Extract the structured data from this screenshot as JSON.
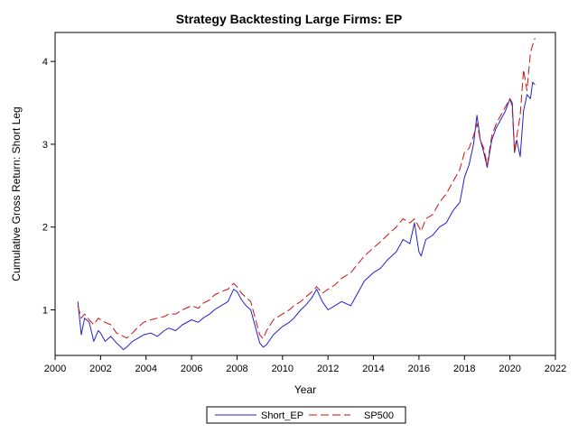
{
  "chart_data": {
    "type": "line",
    "title": "Strategy Backtesting Large Firms: EP",
    "xlabel": "Year",
    "ylabel": "Cumulative Gross Return: Short Leg",
    "xlim": [
      2000,
      2022
    ],
    "ylim": [
      0.45,
      4.35
    ],
    "xticks": [
      2000,
      2002,
      2004,
      2006,
      2008,
      2010,
      2012,
      2014,
      2016,
      2018,
      2020,
      2022
    ],
    "yticks": [
      1,
      2,
      3,
      4
    ],
    "grid": false,
    "legend": "bottom-center",
    "series": [
      {
        "name": "Short_EP",
        "color": "#2222cc",
        "dash": "solid",
        "x": [
          2001.0,
          2001.15,
          2001.3,
          2001.5,
          2001.7,
          2001.9,
          2002.0,
          2002.2,
          2002.45,
          2002.7,
          2002.9,
          2003.0,
          2003.15,
          2003.4,
          2003.6,
          2003.9,
          2004.2,
          2004.5,
          2004.8,
          2005.0,
          2005.3,
          2005.6,
          2006.0,
          2006.3,
          2006.5,
          2006.8,
          2007.0,
          2007.3,
          2007.6,
          2007.85,
          2008.0,
          2008.2,
          2008.4,
          2008.6,
          2008.8,
          2009.0,
          2009.15,
          2009.3,
          2009.6,
          2010.0,
          2010.3,
          2010.5,
          2010.8,
          2011.0,
          2011.3,
          2011.5,
          2011.75,
          2012.0,
          2012.3,
          2012.6,
          2013.0,
          2013.3,
          2013.6,
          2014.0,
          2014.3,
          2014.6,
          2015.0,
          2015.3,
          2015.6,
          2015.8,
          2016.0,
          2016.1,
          2016.3,
          2016.6,
          2016.9,
          2017.2,
          2017.5,
          2017.8,
          2018.0,
          2018.2,
          2018.4,
          2018.55,
          2018.7,
          2018.85,
          2019.0,
          2019.2,
          2019.4,
          2019.6,
          2019.8,
          2020.0,
          2020.1,
          2020.2,
          2020.3,
          2020.45,
          2020.6,
          2020.75,
          2020.9,
          2021.0,
          2021.1
        ],
        "y": [
          1.1,
          0.7,
          0.9,
          0.85,
          0.62,
          0.75,
          0.72,
          0.62,
          0.68,
          0.6,
          0.55,
          0.52,
          0.55,
          0.62,
          0.65,
          0.7,
          0.72,
          0.68,
          0.75,
          0.78,
          0.75,
          0.82,
          0.88,
          0.85,
          0.9,
          0.95,
          1.0,
          1.05,
          1.1,
          1.25,
          1.22,
          1.12,
          1.05,
          1.0,
          0.8,
          0.6,
          0.55,
          0.58,
          0.7,
          0.8,
          0.85,
          0.9,
          1.0,
          1.05,
          1.15,
          1.25,
          1.1,
          1.0,
          1.05,
          1.1,
          1.05,
          1.2,
          1.35,
          1.45,
          1.5,
          1.6,
          1.7,
          1.85,
          1.8,
          2.05,
          1.7,
          1.65,
          1.85,
          1.9,
          2.0,
          2.05,
          2.2,
          2.3,
          2.6,
          2.75,
          3.0,
          3.35,
          3.05,
          2.9,
          2.72,
          3.05,
          3.2,
          3.3,
          3.4,
          3.55,
          3.5,
          2.9,
          3.05,
          2.85,
          3.4,
          3.6,
          3.55,
          3.75,
          3.72
        ]
      },
      {
        "name": "SP500",
        "color": "#cc1111",
        "dash": "long-dash",
        "x": [
          2001.0,
          2001.15,
          2001.3,
          2001.5,
          2001.7,
          2001.9,
          2002.0,
          2002.2,
          2002.45,
          2002.7,
          2002.9,
          2003.0,
          2003.15,
          2003.4,
          2003.6,
          2003.9,
          2004.2,
          2004.5,
          2004.8,
          2005.0,
          2005.3,
          2005.6,
          2006.0,
          2006.3,
          2006.5,
          2006.8,
          2007.0,
          2007.3,
          2007.6,
          2007.85,
          2008.0,
          2008.2,
          2008.4,
          2008.6,
          2008.8,
          2009.0,
          2009.15,
          2009.3,
          2009.6,
          2010.0,
          2010.3,
          2010.5,
          2010.8,
          2011.0,
          2011.3,
          2011.5,
          2011.75,
          2012.0,
          2012.3,
          2012.6,
          2013.0,
          2013.3,
          2013.6,
          2014.0,
          2014.3,
          2014.6,
          2015.0,
          2015.3,
          2015.6,
          2015.8,
          2016.0,
          2016.1,
          2016.3,
          2016.6,
          2016.9,
          2017.2,
          2017.5,
          2017.8,
          2018.0,
          2018.2,
          2018.4,
          2018.55,
          2018.7,
          2018.85,
          2019.0,
          2019.2,
          2019.4,
          2019.6,
          2019.8,
          2020.0,
          2020.1,
          2020.2,
          2020.3,
          2020.45,
          2020.6,
          2020.75,
          2020.9,
          2021.0,
          2021.1
        ],
        "y": [
          1.05,
          0.9,
          0.95,
          0.88,
          0.82,
          0.9,
          0.88,
          0.85,
          0.82,
          0.72,
          0.7,
          0.68,
          0.66,
          0.72,
          0.78,
          0.85,
          0.88,
          0.9,
          0.92,
          0.95,
          0.95,
          1.0,
          1.05,
          1.02,
          1.08,
          1.12,
          1.18,
          1.22,
          1.25,
          1.32,
          1.28,
          1.2,
          1.15,
          1.1,
          0.9,
          0.7,
          0.65,
          0.75,
          0.88,
          0.95,
          1.0,
          1.05,
          1.1,
          1.15,
          1.22,
          1.28,
          1.2,
          1.25,
          1.3,
          1.38,
          1.45,
          1.55,
          1.65,
          1.75,
          1.82,
          1.9,
          2.0,
          2.1,
          2.05,
          2.1,
          2.0,
          1.95,
          2.1,
          2.15,
          2.3,
          2.4,
          2.55,
          2.7,
          2.9,
          2.95,
          3.1,
          3.25,
          3.05,
          2.95,
          2.75,
          3.1,
          3.25,
          3.35,
          3.45,
          3.55,
          3.45,
          2.9,
          3.1,
          3.35,
          3.9,
          3.65,
          4.1,
          4.2,
          4.28
        ]
      }
    ]
  }
}
